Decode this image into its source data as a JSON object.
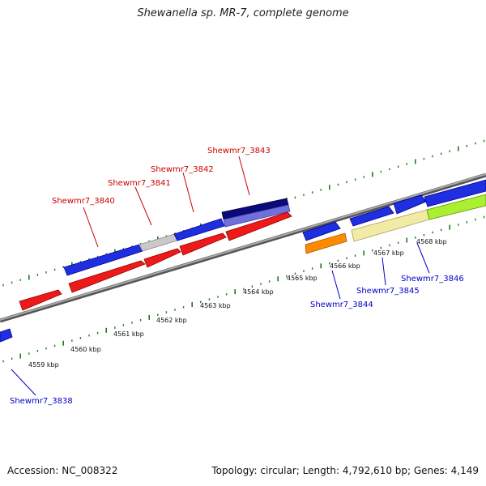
{
  "title": "Shewanella sp. MR-7, complete genome",
  "footer": {
    "accession": "Accession: NC_008322",
    "summary": "Topology: circular; Length: 4,792,610 bp; Genes: 4,149"
  },
  "colors": {
    "forward_gene": "#0000dd",
    "reverse_gene": "#dd0000",
    "tick": "#1a7a1a",
    "backbone": "#888888",
    "forward_label": "#cc0000",
    "reverse_label": "#0000cc"
  },
  "scale_labels": [
    "4559 kbp",
    "4560 kbp",
    "4561 kbp",
    "4562 kbp",
    "4563 kbp",
    "4564 kbp",
    "4565 kbp",
    "4566 kbp",
    "4567 kbp",
    "4568 kbp"
  ],
  "gene_labels": {
    "upper": [
      "Shewmr7_3840",
      "Shewmr7_3841",
      "Shewmr7_3842",
      "Shewmr7_3843"
    ],
    "lower": [
      "Shewmr7_3838",
      "Shewmr7_3844",
      "Shewmr7_3845",
      "Shewmr7_3846"
    ]
  }
}
